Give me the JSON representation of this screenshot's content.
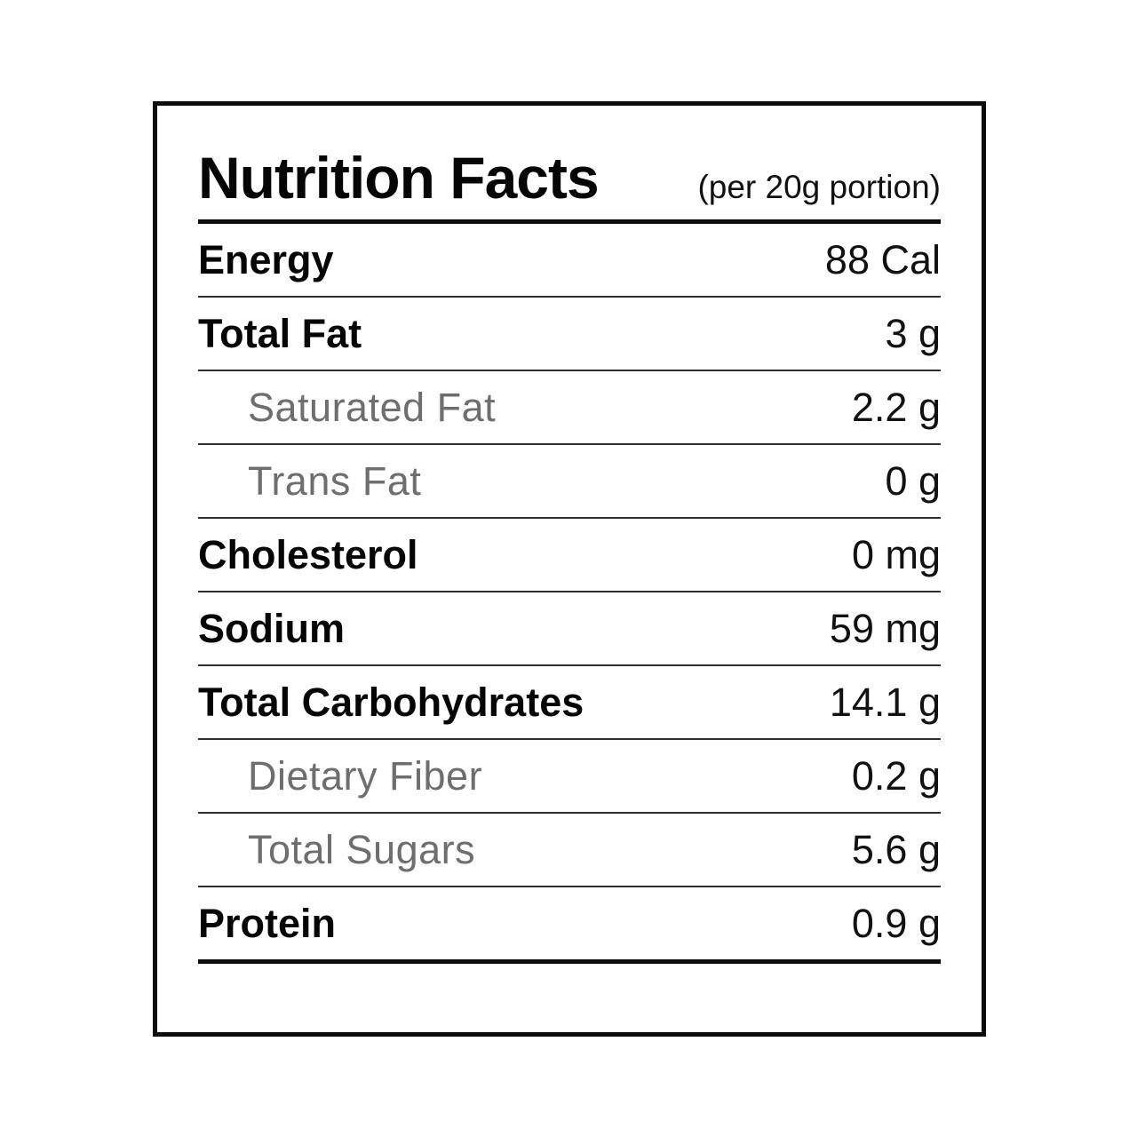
{
  "page": {
    "background": "#ffffff"
  },
  "label": {
    "title": "Nutrition Facts",
    "subtitle": "(per 20g portion)",
    "colors": {
      "border": "#0c0c0c",
      "thick_rule": "#0c0c0c",
      "thin_divider": "#2f2f2f",
      "main_text": "#050505",
      "sub_label_text": "#6e6e6e",
      "value_text": "#111111",
      "background": "#ffffff"
    },
    "rows": [
      {
        "name": "Energy",
        "value": "88 Cal",
        "style": "main"
      },
      {
        "name": "Total Fat",
        "value": "3 g",
        "style": "main"
      },
      {
        "name": "Saturated Fat",
        "value": "2.2 g",
        "style": "sub"
      },
      {
        "name": "Trans Fat",
        "value": "0 g",
        "style": "sub"
      },
      {
        "name": "Cholesterol",
        "value": "0 mg",
        "style": "main"
      },
      {
        "name": "Sodium",
        "value": "59 mg",
        "style": "main"
      },
      {
        "name": "Total Carbohydrates",
        "value": "14.1 g",
        "style": "main"
      },
      {
        "name": "Dietary Fiber",
        "value": "0.2 g",
        "style": "sub"
      },
      {
        "name": "Total Sugars",
        "value": "5.6 g",
        "style": "sub"
      },
      {
        "name": "Protein",
        "value": "0.9 g",
        "style": "main"
      }
    ]
  }
}
